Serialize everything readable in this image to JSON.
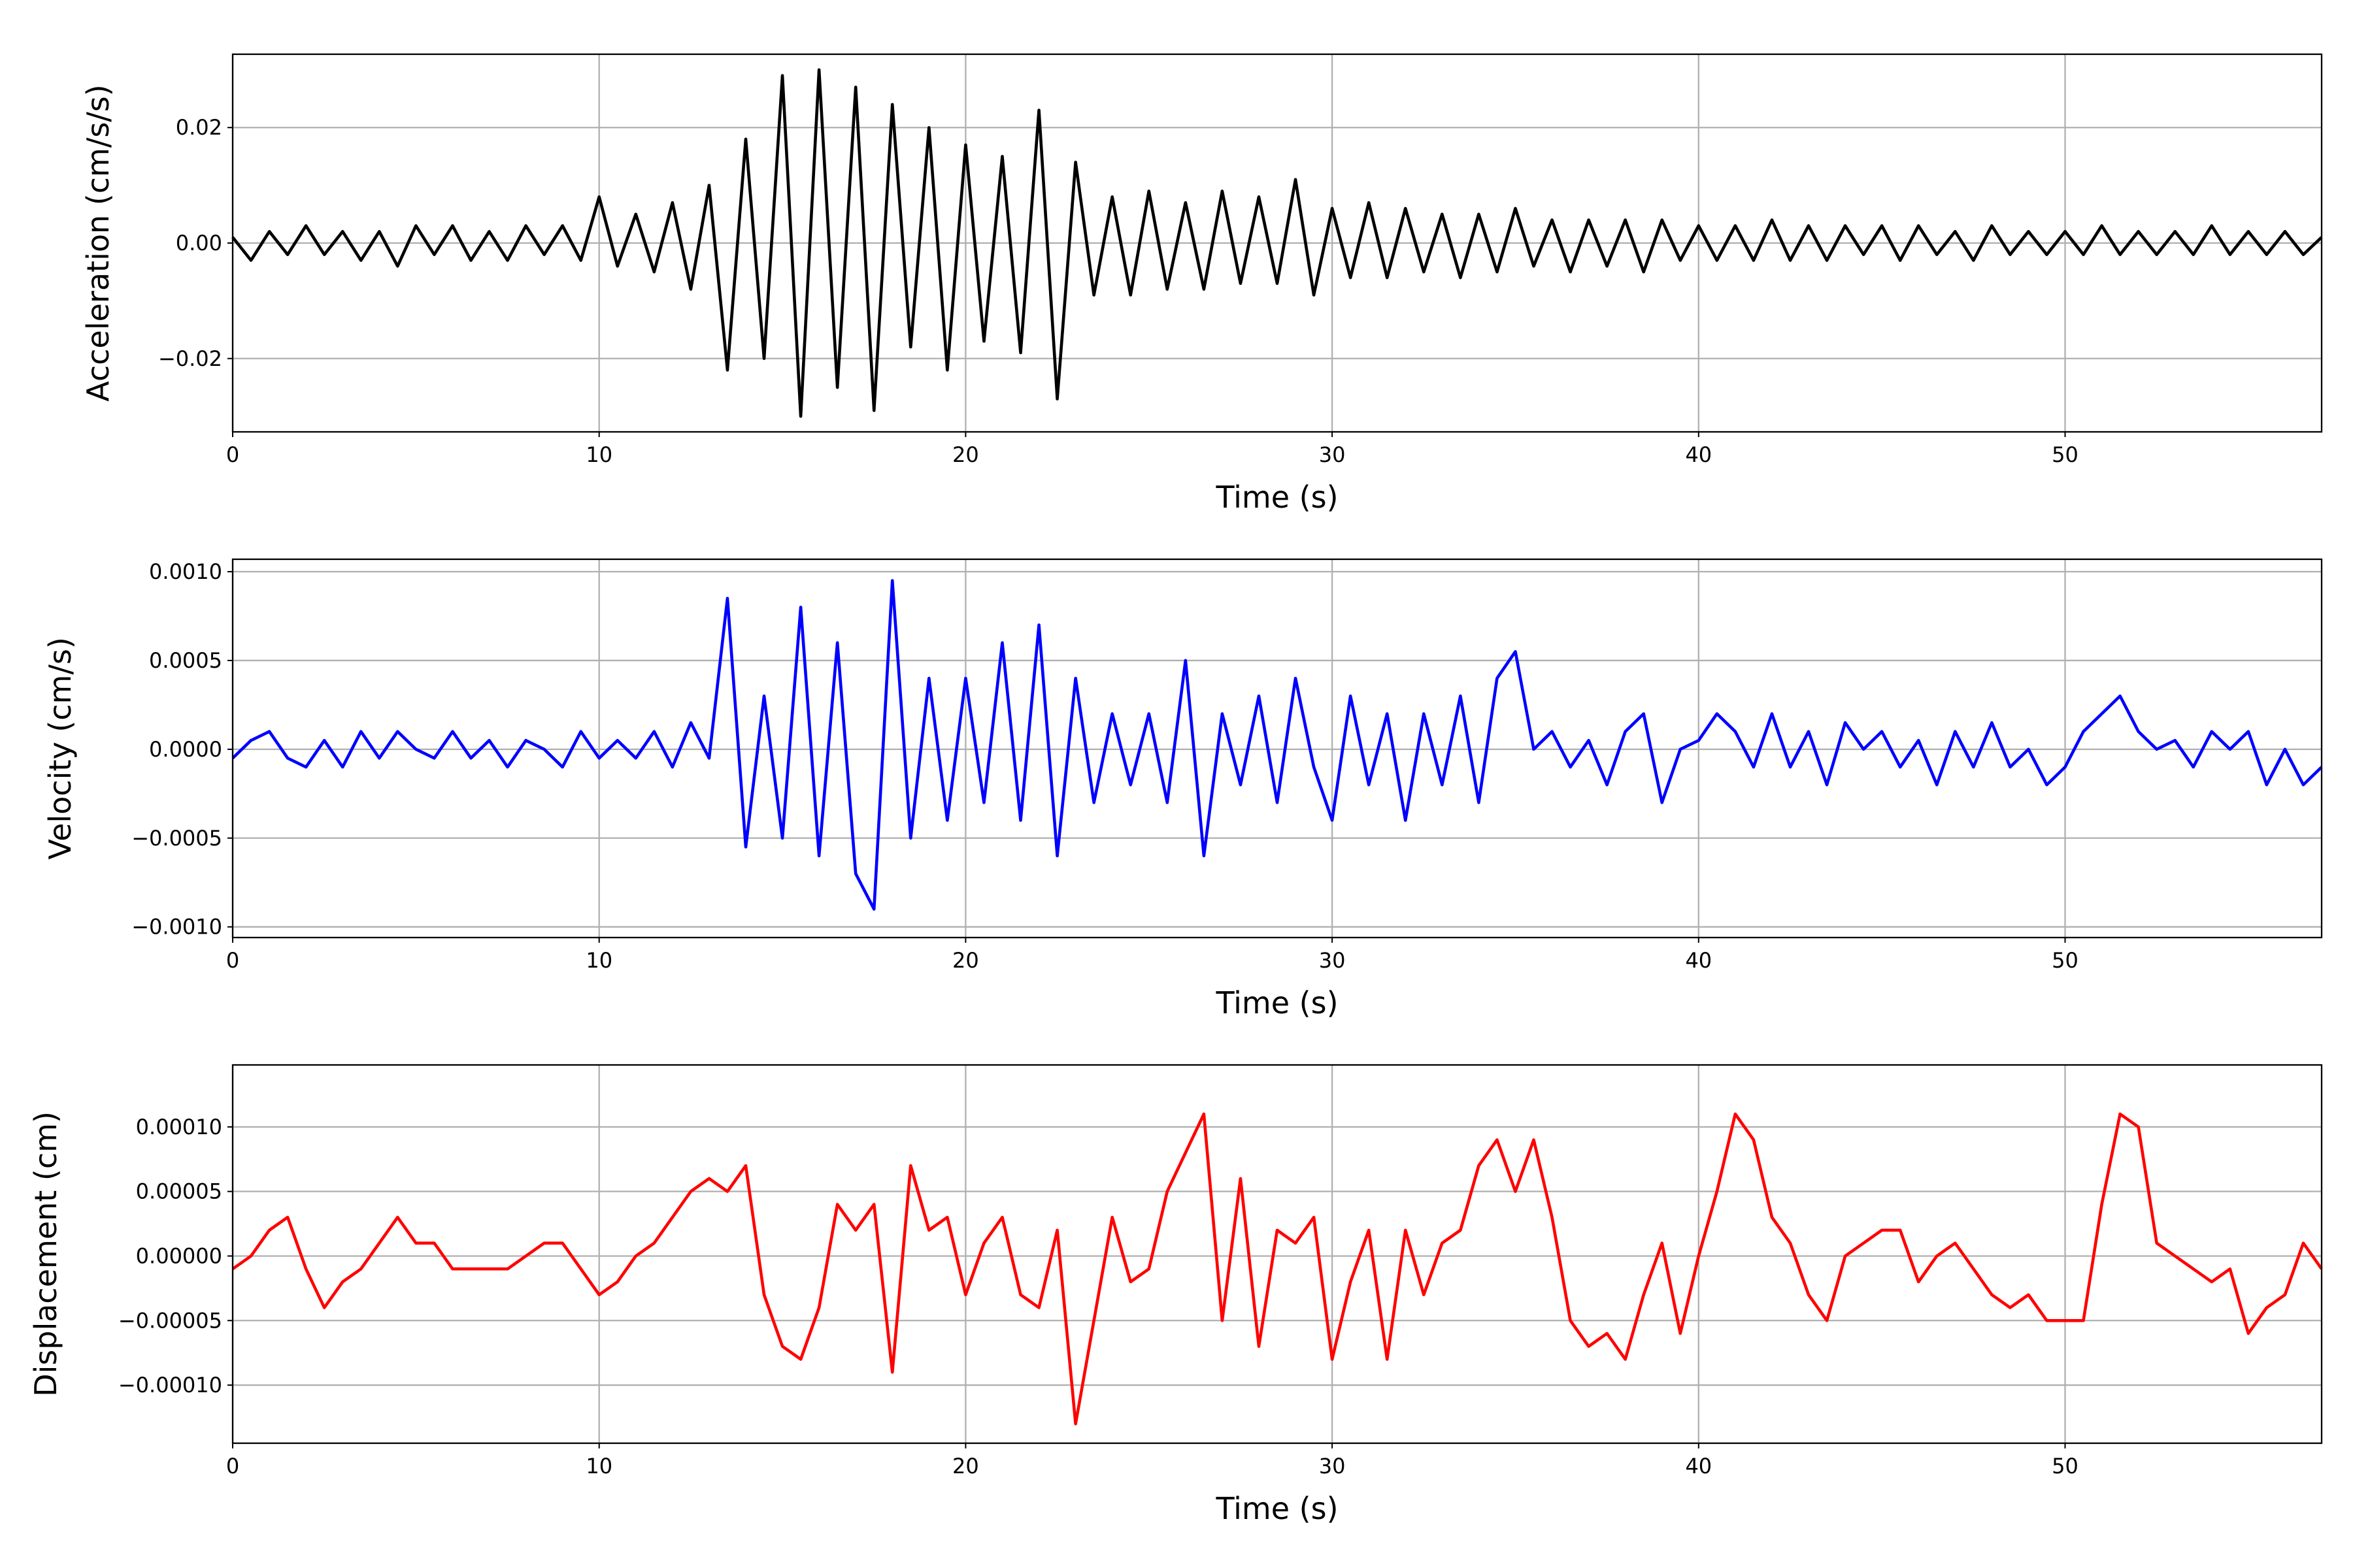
{
  "chart_data": [
    {
      "type": "line",
      "xlabel": "Time (s)",
      "ylabel": "Acceleration (cm/s/s)",
      "grid": true,
      "xlim": [
        0,
        57
      ],
      "xticks": [
        0,
        10,
        20,
        30,
        40,
        50
      ],
      "ylim": [
        -0.0327,
        0.0327
      ],
      "yticks": [
        {
          "value": -0.02,
          "label": "−0.02"
        },
        {
          "value": 0,
          "label": "0.00"
        },
        {
          "value": 0.02,
          "label": "0.02"
        }
      ],
      "x": [
        0,
        0.5,
        1,
        1.5,
        2,
        2.5,
        3,
        3.5,
        4,
        4.5,
        5,
        5.5,
        6,
        6.5,
        7,
        7.5,
        8,
        8.5,
        9,
        9.5,
        10,
        10.5,
        11,
        11.5,
        12,
        12.5,
        13,
        13.5,
        14,
        14.5,
        15,
        15.5,
        16,
        16.5,
        17,
        17.5,
        18,
        18.5,
        19,
        19.5,
        20,
        20.5,
        21,
        21.5,
        22,
        22.5,
        23,
        23.5,
        24,
        24.5,
        25,
        25.5,
        26,
        26.5,
        27,
        27.5,
        28,
        28.5,
        29,
        29.5,
        30,
        30.5,
        31,
        31.5,
        32,
        32.5,
        33,
        33.5,
        34,
        34.5,
        35,
        35.5,
        36,
        36.5,
        37,
        37.5,
        38,
        38.5,
        39,
        39.5,
        40,
        40.5,
        41,
        41.5,
        42,
        42.5,
        43,
        43.5,
        44,
        44.5,
        45,
        45.5,
        46,
        46.5,
        47,
        47.5,
        48,
        48.5,
        49,
        49.5,
        50,
        50.5,
        51,
        51.5,
        52,
        52.5,
        53,
        53.5,
        54,
        54.5,
        55,
        55.5,
        56,
        56.5,
        57
      ],
      "series": [
        {
          "color": "#000000",
          "values": [
            0.001,
            -0.003,
            0.002,
            -0.002,
            0.003,
            -0.002,
            0.002,
            -0.003,
            0.002,
            -0.004,
            0.003,
            -0.002,
            0.003,
            -0.003,
            0.002,
            -0.003,
            0.003,
            -0.002,
            0.003,
            -0.003,
            0.008,
            -0.004,
            0.005,
            -0.005,
            0.007,
            -0.008,
            0.01,
            -0.022,
            0.018,
            -0.02,
            0.029,
            -0.03,
            0.03,
            -0.025,
            0.027,
            -0.029,
            0.024,
            -0.018,
            0.02,
            -0.022,
            0.017,
            -0.017,
            0.015,
            -0.019,
            0.023,
            -0.027,
            0.014,
            -0.009,
            0.008,
            -0.009,
            0.009,
            -0.008,
            0.007,
            -0.008,
            0.009,
            -0.007,
            0.008,
            -0.007,
            0.011,
            -0.009,
            0.006,
            -0.006,
            0.007,
            -0.006,
            0.006,
            -0.005,
            0.005,
            -0.006,
            0.005,
            -0.005,
            0.006,
            -0.004,
            0.004,
            -0.005,
            0.004,
            -0.004,
            0.004,
            -0.005,
            0.004,
            -0.003,
            0.003,
            -0.003,
            0.003,
            -0.003,
            0.004,
            -0.003,
            0.003,
            -0.003,
            0.003,
            -0.002,
            0.003,
            -0.003,
            0.003,
            -0.002,
            0.002,
            -0.003,
            0.003,
            -0.002,
            0.002,
            -0.002,
            0.002,
            -0.002,
            0.003,
            -0.002,
            0.002,
            -0.002,
            0.002,
            -0.002,
            0.003,
            -0.002,
            0.002,
            -0.002,
            0.002,
            -0.002,
            0.001
          ]
        }
      ]
    },
    {
      "type": "line",
      "xlabel": "Time (s)",
      "ylabel": "Velocity (cm/s)",
      "grid": true,
      "xlim": [
        0,
        57
      ],
      "xticks": [
        0,
        10,
        20,
        30,
        40,
        50
      ],
      "ylim": [
        -0.00106,
        0.00107
      ],
      "yticks": [
        {
          "value": -0.001,
          "label": "−0.0010"
        },
        {
          "value": -0.0005,
          "label": "−0.0005"
        },
        {
          "value": 0,
          "label": "0.0000"
        },
        {
          "value": 0.0005,
          "label": "0.0005"
        },
        {
          "value": 0.001,
          "label": "0.0010"
        }
      ],
      "x": [
        0,
        0.5,
        1,
        1.5,
        2,
        2.5,
        3,
        3.5,
        4,
        4.5,
        5,
        5.5,
        6,
        6.5,
        7,
        7.5,
        8,
        8.5,
        9,
        9.5,
        10,
        10.5,
        11,
        11.5,
        12,
        12.5,
        13,
        13.5,
        14,
        14.5,
        15,
        15.5,
        16,
        16.5,
        17,
        17.5,
        18,
        18.5,
        19,
        19.5,
        20,
        20.5,
        21,
        21.5,
        22,
        22.5,
        23,
        23.5,
        24,
        24.5,
        25,
        25.5,
        26,
        26.5,
        27,
        27.5,
        28,
        28.5,
        29,
        29.5,
        30,
        30.5,
        31,
        31.5,
        32,
        32.5,
        33,
        33.5,
        34,
        34.5,
        35,
        35.5,
        36,
        36.5,
        37,
        37.5,
        38,
        38.5,
        39,
        39.5,
        40,
        40.5,
        41,
        41.5,
        42,
        42.5,
        43,
        43.5,
        44,
        44.5,
        45,
        45.5,
        46,
        46.5,
        47,
        47.5,
        48,
        48.5,
        49,
        49.5,
        50,
        50.5,
        51,
        51.5,
        52,
        52.5,
        53,
        53.5,
        54,
        54.5,
        55,
        55.5,
        56,
        56.5,
        57
      ],
      "series": [
        {
          "color": "#0000ff",
          "values": [
            -5e-05,
            5e-05,
            0.0001,
            -5e-05,
            -0.0001,
            5e-05,
            -0.0001,
            0.0001,
            -5e-05,
            0.0001,
            0,
            -5e-05,
            0.0001,
            -5e-05,
            5e-05,
            -0.0001,
            5e-05,
            0,
            -0.0001,
            0.0001,
            -5e-05,
            5e-05,
            -5e-05,
            0.0001,
            -0.0001,
            0.00015,
            -5e-05,
            0.00085,
            -0.00055,
            0.0003,
            -0.0005,
            0.0008,
            -0.0006,
            0.0006,
            -0.0007,
            -0.0009,
            0.00095,
            -0.0005,
            0.0004,
            -0.0004,
            0.0004,
            -0.0003,
            0.0006,
            -0.0004,
            0.0007,
            -0.0006,
            0.0004,
            -0.0003,
            0.0002,
            -0.0002,
            0.0002,
            -0.0003,
            0.0005,
            -0.0006,
            0.0002,
            -0.0002,
            0.0003,
            -0.0003,
            0.0004,
            -0.0001,
            -0.0004,
            0.0003,
            -0.0002,
            0.0002,
            -0.0004,
            0.0002,
            -0.0002,
            0.0003,
            -0.0003,
            0.0004,
            0.00055,
            0,
            0.0001,
            -0.0001,
            5e-05,
            -0.0002,
            0.0001,
            0.0002,
            -0.0003,
            0,
            5e-05,
            0.0002,
            0.0001,
            -0.0001,
            0.0002,
            -0.0001,
            0.0001,
            -0.0002,
            0.00015,
            0,
            0.0001,
            -0.0001,
            5e-05,
            -0.0002,
            0.0001,
            -0.0001,
            0.00015,
            -0.0001,
            0,
            -0.0002,
            -0.0001,
            0.0001,
            0.0002,
            0.0003,
            0.0001,
            0,
            5e-05,
            -0.0001,
            0.0001,
            0,
            0.0001,
            -0.0002,
            0,
            -0.0002,
            -0.0001
          ]
        }
      ]
    },
    {
      "type": "line",
      "xlabel": "Time (s)",
      "ylabel": "Displacement (cm)",
      "grid": true,
      "xlim": [
        0,
        57
      ],
      "xticks": [
        0,
        10,
        20,
        30,
        40,
        50
      ],
      "ylim": [
        -0.000145,
        0.000148
      ],
      "yticks": [
        {
          "value": -0.0001,
          "label": "−0.00010"
        },
        {
          "value": -5e-05,
          "label": "−0.00005"
        },
        {
          "value": 0,
          "label": "0.00000"
        },
        {
          "value": 5e-05,
          "label": "0.00005"
        },
        {
          "value": 0.0001,
          "label": "0.00010"
        }
      ],
      "x": [
        0,
        0.5,
        1,
        1.5,
        2,
        2.5,
        3,
        3.5,
        4,
        4.5,
        5,
        5.5,
        6,
        6.5,
        7,
        7.5,
        8,
        8.5,
        9,
        9.5,
        10,
        10.5,
        11,
        11.5,
        12,
        12.5,
        13,
        13.5,
        14,
        14.5,
        15,
        15.5,
        16,
        16.5,
        17,
        17.5,
        18,
        18.5,
        19,
        19.5,
        20,
        20.5,
        21,
        21.5,
        22,
        22.5,
        23,
        23.5,
        24,
        24.5,
        25,
        25.5,
        26,
        26.5,
        27,
        27.5,
        28,
        28.5,
        29,
        29.5,
        30,
        30.5,
        31,
        31.5,
        32,
        32.5,
        33,
        33.5,
        34,
        34.5,
        35,
        35.5,
        36,
        36.5,
        37,
        37.5,
        38,
        38.5,
        39,
        39.5,
        40,
        40.5,
        41,
        41.5,
        42,
        42.5,
        43,
        43.5,
        44,
        44.5,
        45,
        45.5,
        46,
        46.5,
        47,
        47.5,
        48,
        48.5,
        49,
        49.5,
        50,
        50.5,
        51,
        51.5,
        52,
        52.5,
        53,
        53.5,
        54,
        54.5,
        55,
        55.5,
        56,
        56.5,
        57
      ],
      "series": [
        {
          "color": "#ff0000",
          "values": [
            -1e-05,
            0,
            2e-05,
            3e-05,
            -1e-05,
            -4e-05,
            -2e-05,
            -1e-05,
            1e-05,
            3e-05,
            1e-05,
            1e-05,
            -1e-05,
            -1e-05,
            -1e-05,
            -1e-05,
            0,
            1e-05,
            1e-05,
            -1e-05,
            -3e-05,
            -2e-05,
            0,
            1e-05,
            3e-05,
            5e-05,
            6e-05,
            5e-05,
            7e-05,
            -3e-05,
            -7e-05,
            -8e-05,
            -4e-05,
            4e-05,
            2e-05,
            4e-05,
            -9e-05,
            7e-05,
            2e-05,
            3e-05,
            -3e-05,
            1e-05,
            3e-05,
            -3e-05,
            -4e-05,
            2e-05,
            -0.00013,
            -5e-05,
            3e-05,
            -2e-05,
            -1e-05,
            5e-05,
            8e-05,
            0.00011,
            -5e-05,
            6e-05,
            -7e-05,
            2e-05,
            1e-05,
            3e-05,
            -8e-05,
            -2e-05,
            2e-05,
            -8e-05,
            2e-05,
            -3e-05,
            1e-05,
            2e-05,
            7e-05,
            9e-05,
            5e-05,
            9e-05,
            3e-05,
            -5e-05,
            -7e-05,
            -6e-05,
            -8e-05,
            -3e-05,
            1e-05,
            -6e-05,
            0,
            5e-05,
            0.00011,
            9e-05,
            3e-05,
            1e-05,
            -3e-05,
            -5e-05,
            0,
            1e-05,
            2e-05,
            2e-05,
            -2e-05,
            0,
            1e-05,
            -1e-05,
            -3e-05,
            -4e-05,
            -3e-05,
            -5e-05,
            -5e-05,
            -5e-05,
            4e-05,
            0.00011,
            0.0001,
            1e-05,
            0,
            -1e-05,
            -2e-05,
            -1e-05,
            -6e-05,
            -4e-05,
            -3e-05,
            1e-05,
            -1e-05
          ]
        }
      ]
    }
  ]
}
